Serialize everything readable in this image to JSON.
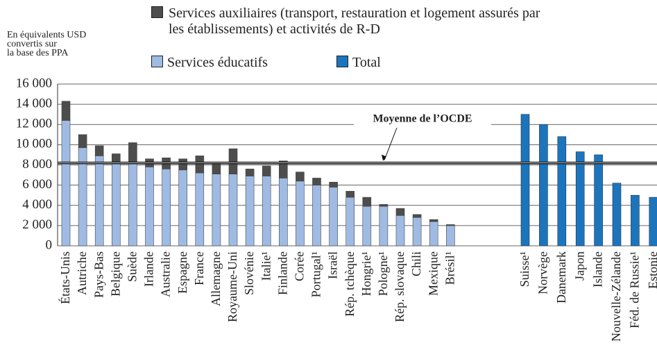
{
  "chart_data": {
    "type": "bar",
    "stacked": true,
    "y_axis_label": [
      "En équivalents USD",
      "convertis sur",
      "la base des PPA"
    ],
    "categories": [
      "États-Unis",
      "Autriche",
      "Pays-Bas",
      "Belgique",
      "Suède",
      "Irlande",
      "Australie",
      "Espagne",
      "France",
      "Allemagne",
      "Royaume-Uni",
      "Slovénie",
      "Italie¹",
      "Finlande",
      "Corée",
      "Portugal¹",
      "Israël",
      "Rép. tchèque",
      "Hongrie¹",
      "Pologne¹",
      "Rép. slovaque",
      "Chili",
      "Mexique",
      "Brésil¹",
      "Suisse¹",
      "Norvège",
      "Danemark",
      "Japon",
      "Islande",
      "Nouvelle-Zélande",
      "Féd. de Russie¹",
      "Estonie"
    ],
    "series": [
      {
        "name": "Services éducatifs",
        "color": "#9fbbe3",
        "values": [
          12400,
          9700,
          8900,
          8100,
          8100,
          7800,
          7600,
          7500,
          7200,
          7100,
          7100,
          6900,
          6900,
          6700,
          6400,
          6000,
          5800,
          4800,
          3900,
          3900,
          3000,
          2800,
          2400,
          2000,
          null,
          null,
          null,
          null,
          null,
          null,
          null,
          null
        ]
      },
      {
        "name": "Services auxiliaires (transport, restauration et logement assurés par les établissements) et activités de R-D",
        "color": "#4d4d4d",
        "values": [
          1900,
          1300,
          1000,
          1000,
          2100,
          800,
          1100,
          1100,
          1700,
          1100,
          2500,
          700,
          1000,
          1700,
          900,
          700,
          500,
          600,
          900,
          200,
          700,
          300,
          200,
          100,
          null,
          null,
          null,
          null,
          null,
          null,
          null,
          null
        ]
      },
      {
        "name": "Total",
        "color": "#1c75bc",
        "values": [
          null,
          null,
          null,
          null,
          null,
          null,
          null,
          null,
          null,
          null,
          null,
          null,
          null,
          null,
          null,
          null,
          null,
          null,
          null,
          null,
          null,
          null,
          null,
          null,
          13000,
          12000,
          10800,
          9300,
          9000,
          6200,
          5000,
          4800
        ]
      }
    ],
    "ylim": [
      0,
      16000
    ],
    "yticks": [
      0,
      {
        "value": 2000,
        "label": "2 000"
      },
      {
        "value": 4000,
        "label": "4 000"
      },
      {
        "value": 6000,
        "label": "6 000"
      },
      {
        "value": 8000,
        "label": "8 000"
      },
      {
        "value": 10000,
        "label": "10 000"
      },
      {
        "value": 12000,
        "label": "12 000"
      },
      {
        "value": 14000,
        "label": "14 000"
      },
      {
        "value": 16000,
        "label": "16 000"
      }
    ],
    "grid": true,
    "oecd_mean": 8200,
    "oecd_mean_label": "Moyenne de l’OCDE"
  }
}
